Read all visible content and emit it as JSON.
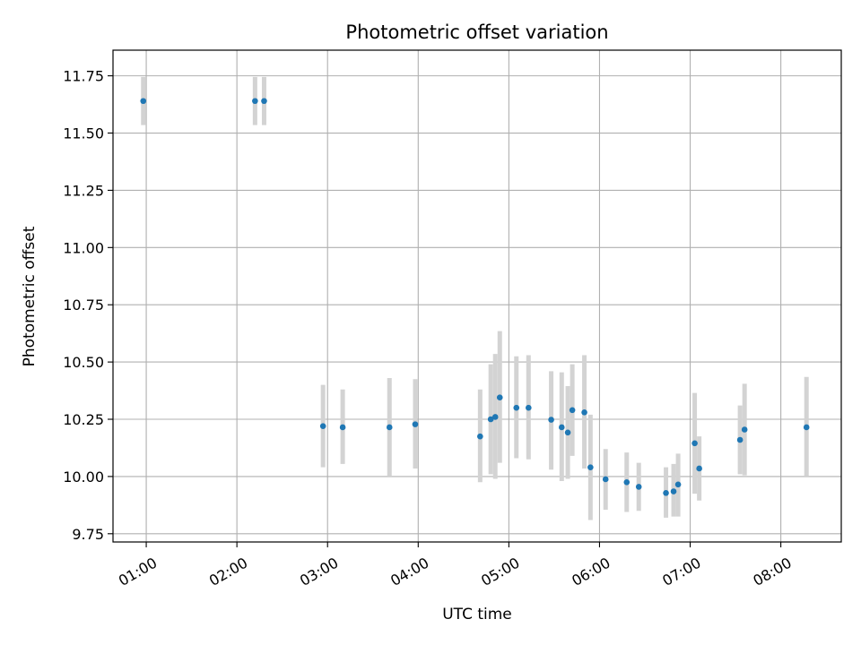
{
  "chart_data": {
    "type": "scatter",
    "title": "Photometric offset variation",
    "xlabel": "UTC time",
    "ylabel": "Photometric offset",
    "x_unit": "hour of day (UTC)",
    "xlim": [
      0.6333,
      8.6667
    ],
    "ylim": [
      9.714,
      11.862
    ],
    "x_ticks": [
      {
        "value": 1,
        "label": "01:00"
      },
      {
        "value": 2,
        "label": "02:00"
      },
      {
        "value": 3,
        "label": "03:00"
      },
      {
        "value": 4,
        "label": "04:00"
      },
      {
        "value": 5,
        "label": "05:00"
      },
      {
        "value": 6,
        "label": "06:00"
      },
      {
        "value": 7,
        "label": "07:00"
      },
      {
        "value": 8,
        "label": "08:00"
      }
    ],
    "y_ticks": [
      {
        "value": 9.75,
        "label": "9.75"
      },
      {
        "value": 10.0,
        "label": "10.00"
      },
      {
        "value": 10.25,
        "label": "10.25"
      },
      {
        "value": 10.5,
        "label": "10.50"
      },
      {
        "value": 10.75,
        "label": "10.75"
      },
      {
        "value": 11.0,
        "label": "11.00"
      },
      {
        "value": 11.25,
        "label": "11.25"
      },
      {
        "value": 11.5,
        "label": "11.50"
      },
      {
        "value": 11.75,
        "label": "11.75"
      }
    ],
    "grid": true,
    "legend": "none",
    "point_color": "#1f77b4",
    "errorbar_color": "#d3d3d3",
    "points": [
      {
        "x": 0.967,
        "y": 11.64,
        "ylow": 11.535,
        "yhigh": 11.745
      },
      {
        "x": 2.2,
        "y": 11.64,
        "ylow": 11.535,
        "yhigh": 11.745
      },
      {
        "x": 2.3,
        "y": 11.64,
        "ylow": 11.535,
        "yhigh": 11.745
      },
      {
        "x": 2.95,
        "y": 10.22,
        "ylow": 10.04,
        "yhigh": 10.4
      },
      {
        "x": 3.167,
        "y": 10.215,
        "ylow": 10.055,
        "yhigh": 10.38
      },
      {
        "x": 3.683,
        "y": 10.215,
        "ylow": 10.0,
        "yhigh": 10.43
      },
      {
        "x": 3.967,
        "y": 10.228,
        "ylow": 10.035,
        "yhigh": 10.425
      },
      {
        "x": 4.683,
        "y": 10.175,
        "ylow": 9.975,
        "yhigh": 10.38
      },
      {
        "x": 4.8,
        "y": 10.25,
        "ylow": 10.01,
        "yhigh": 10.49
      },
      {
        "x": 4.85,
        "y": 10.26,
        "ylow": 9.99,
        "yhigh": 10.535
      },
      {
        "x": 4.9,
        "y": 10.345,
        "ylow": 10.06,
        "yhigh": 10.635
      },
      {
        "x": 5.083,
        "y": 10.3,
        "ylow": 10.08,
        "yhigh": 10.525
      },
      {
        "x": 5.217,
        "y": 10.3,
        "ylow": 10.075,
        "yhigh": 10.53
      },
      {
        "x": 5.467,
        "y": 10.248,
        "ylow": 10.03,
        "yhigh": 10.46
      },
      {
        "x": 5.583,
        "y": 10.215,
        "ylow": 9.98,
        "yhigh": 10.455
      },
      {
        "x": 5.65,
        "y": 10.192,
        "ylow": 9.99,
        "yhigh": 10.395
      },
      {
        "x": 5.7,
        "y": 10.29,
        "ylow": 10.09,
        "yhigh": 10.49
      },
      {
        "x": 5.833,
        "y": 10.28,
        "ylow": 10.035,
        "yhigh": 10.53
      },
      {
        "x": 5.9,
        "y": 10.04,
        "ylow": 9.81,
        "yhigh": 10.27
      },
      {
        "x": 6.067,
        "y": 9.988,
        "ylow": 9.855,
        "yhigh": 10.12
      },
      {
        "x": 6.3,
        "y": 9.975,
        "ylow": 9.845,
        "yhigh": 10.105
      },
      {
        "x": 6.433,
        "y": 9.955,
        "ylow": 9.85,
        "yhigh": 10.06
      },
      {
        "x": 6.733,
        "y": 9.928,
        "ylow": 9.82,
        "yhigh": 10.04
      },
      {
        "x": 6.817,
        "y": 9.935,
        "ylow": 9.825,
        "yhigh": 10.055
      },
      {
        "x": 6.867,
        "y": 9.965,
        "ylow": 9.825,
        "yhigh": 10.1
      },
      {
        "x": 7.05,
        "y": 10.145,
        "ylow": 9.925,
        "yhigh": 10.365
      },
      {
        "x": 7.1,
        "y": 10.035,
        "ylow": 9.895,
        "yhigh": 10.175
      },
      {
        "x": 7.55,
        "y": 10.16,
        "ylow": 10.01,
        "yhigh": 10.31
      },
      {
        "x": 7.6,
        "y": 10.205,
        "ylow": 10.005,
        "yhigh": 10.405
      },
      {
        "x": 8.283,
        "y": 10.215,
        "ylow": 10.0,
        "yhigh": 10.435
      }
    ]
  }
}
